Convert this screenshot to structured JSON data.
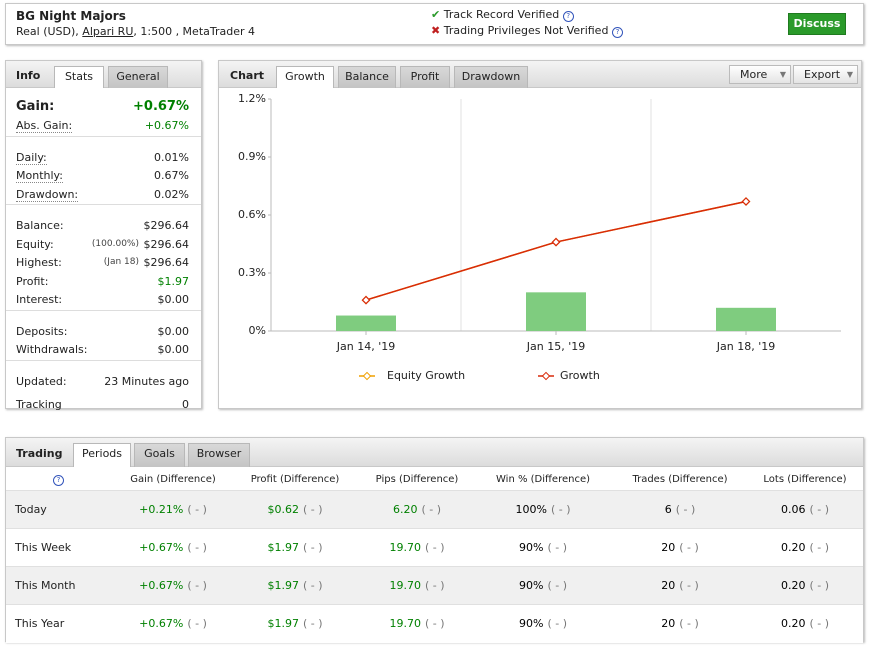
{
  "header": {
    "title": "BG Night Majors",
    "account": "Real (USD),",
    "broker": "Alpari RU",
    "details": ", 1:500 , MetaTrader 4",
    "verified": "Track Record Verified",
    "not_verified": "Trading Privileges Not Verified",
    "help": "?",
    "button": "Discuss"
  },
  "info_panel": {
    "tabs": [
      "Info",
      "Stats",
      "General"
    ],
    "groups": [
      [
        {
          "label": "Gain:",
          "value": "+0.67%",
          "color": "#008000"
        },
        {
          "label": "Abs. Gain:",
          "value": "+0.67%",
          "color": "#008000"
        }
      ],
      [
        {
          "label": "Daily:",
          "value": "0.01%"
        },
        {
          "label": "Monthly:",
          "value": "0.67%"
        },
        {
          "label": "Drawdown:",
          "value": "0.02%"
        }
      ],
      [
        {
          "label": "Balance:",
          "value": "$296.64"
        },
        {
          "label": "Equity:",
          "note": "(100.00%)",
          "value": "$296.64"
        },
        {
          "label": "Highest:",
          "note": "(Jan 18)",
          "value": "$296.64"
        },
        {
          "label": "Profit:",
          "value": "$1.97",
          "color": "#008000"
        },
        {
          "label": "Interest:",
          "value": "$0.00"
        }
      ],
      [
        {
          "label": "Deposits:",
          "value": "$0.00"
        },
        {
          "label": "Withdrawals:",
          "value": "$0.00"
        }
      ],
      [
        {
          "label": "Updated:",
          "value": "23 Minutes ago"
        },
        {
          "label": "Tracking",
          "value": "0"
        }
      ]
    ]
  },
  "chart_panel": {
    "tabs": [
      "Chart",
      "Growth",
      "Balance",
      "Profit",
      "Drawdown"
    ],
    "buttons": [
      "More",
      "Export"
    ]
  },
  "chart_data": {
    "type": "line",
    "categories": [
      "Jan 14, '19",
      "Jan 15, '19",
      "Jan 18, '19"
    ],
    "ylim": [
      0,
      1.2
    ],
    "yticks": [
      {
        "value": 0,
        "label": "0%"
      },
      {
        "value": 0.3,
        "label": "0.3%"
      },
      {
        "value": 0.6,
        "label": "0.6%"
      },
      {
        "value": 0.9,
        "label": "0.9%"
      },
      {
        "value": 1.2,
        "label": "1.2%"
      }
    ],
    "grid": false,
    "bars": {
      "color": "#7fcc7f",
      "values": [
        0.08,
        0.2,
        0.12
      ]
    },
    "series": [
      {
        "name": "Equity Growth",
        "color": "#f0a000",
        "values": [
          0.16,
          0.46,
          0.67
        ]
      },
      {
        "name": "Growth",
        "color": "#d82a0a",
        "values": [
          0.16,
          0.46,
          0.67
        ]
      }
    ]
  },
  "trading": {
    "tabs": [
      "Trading",
      "Periods",
      "Goals",
      "Browser"
    ],
    "help": "?",
    "columns": [
      "Gain (Difference)",
      "Profit (Difference)",
      "Pips (Difference)",
      "Win % (Difference)",
      "Trades (Difference)",
      "Lots (Difference)"
    ],
    "column_colors": [
      "#008000",
      "#008000",
      "#008000",
      "#000000",
      "#000000",
      "#000000"
    ],
    "rows": [
      {
        "label": "Today",
        "cells": [
          {
            "value": "+0.21%",
            "diff": "( - )"
          },
          {
            "value": "$0.62",
            "diff": "( - )"
          },
          {
            "value": "6.20",
            "diff": "( - )"
          },
          {
            "value": "100%",
            "diff": "( - )"
          },
          {
            "value": "6",
            "diff": "( - )"
          },
          {
            "value": "0.06",
            "diff": "( - )"
          }
        ]
      },
      {
        "label": "This Week",
        "cells": [
          {
            "value": "+0.67%",
            "diff": "( - )"
          },
          {
            "value": "$1.97",
            "diff": "( - )"
          },
          {
            "value": "19.70",
            "diff": "( - )"
          },
          {
            "value": "90%",
            "diff": "( - )"
          },
          {
            "value": "20",
            "diff": "( - )"
          },
          {
            "value": "0.20",
            "diff": "( - )"
          }
        ]
      },
      {
        "label": "This Month",
        "cells": [
          {
            "value": "+0.67%",
            "diff": "( - )"
          },
          {
            "value": "$1.97",
            "diff": "( - )"
          },
          {
            "value": "19.70",
            "diff": "( - )"
          },
          {
            "value": "90%",
            "diff": "( - )"
          },
          {
            "value": "20",
            "diff": "( - )"
          },
          {
            "value": "0.20",
            "diff": "( - )"
          }
        ]
      },
      {
        "label": "This Year",
        "cells": [
          {
            "value": "+0.67%",
            "diff": "( - )"
          },
          {
            "value": "$1.97",
            "diff": "( - )"
          },
          {
            "value": "19.70",
            "diff": "( - )"
          },
          {
            "value": "90%",
            "diff": "( - )"
          },
          {
            "value": "20",
            "diff": "( - )"
          },
          {
            "value": "0.20",
            "diff": "( - )"
          }
        ]
      }
    ]
  }
}
